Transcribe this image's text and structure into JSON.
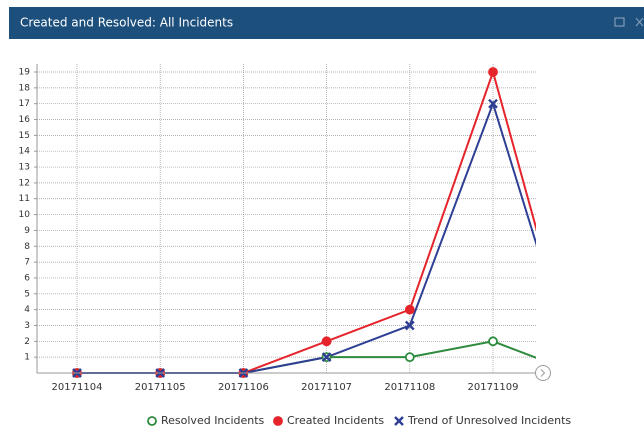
{
  "chart_data": {
    "type": "line",
    "title": "Created and Resolved: All Incidents",
    "categories": [
      "20171104",
      "20171105",
      "20171106",
      "20171107",
      "20171108",
      "20171109",
      null
    ],
    "series": [
      {
        "name": "Resolved Incidents",
        "color": "#2e8b3e",
        "marker": "circle-open",
        "values": [
          0,
          0,
          0,
          1,
          1,
          2,
          0
        ]
      },
      {
        "name": "Created Incidents",
        "color": "#e5242b",
        "marker": "circle",
        "values": [
          0,
          0,
          0,
          2,
          4,
          19,
          0
        ]
      },
      {
        "name": "Trend of Unresolved Incidents",
        "color": "#2e3f94",
        "marker": "x",
        "values": [
          0,
          0,
          0,
          1,
          3,
          17,
          0
        ]
      }
    ],
    "ylim": [
      0,
      19
    ],
    "yticks": [
      1,
      2,
      3,
      4,
      5,
      6,
      7,
      8,
      9,
      10,
      11,
      12,
      13,
      14,
      15,
      16,
      17,
      18,
      19
    ],
    "grid": true,
    "legend": "bottom"
  }
}
